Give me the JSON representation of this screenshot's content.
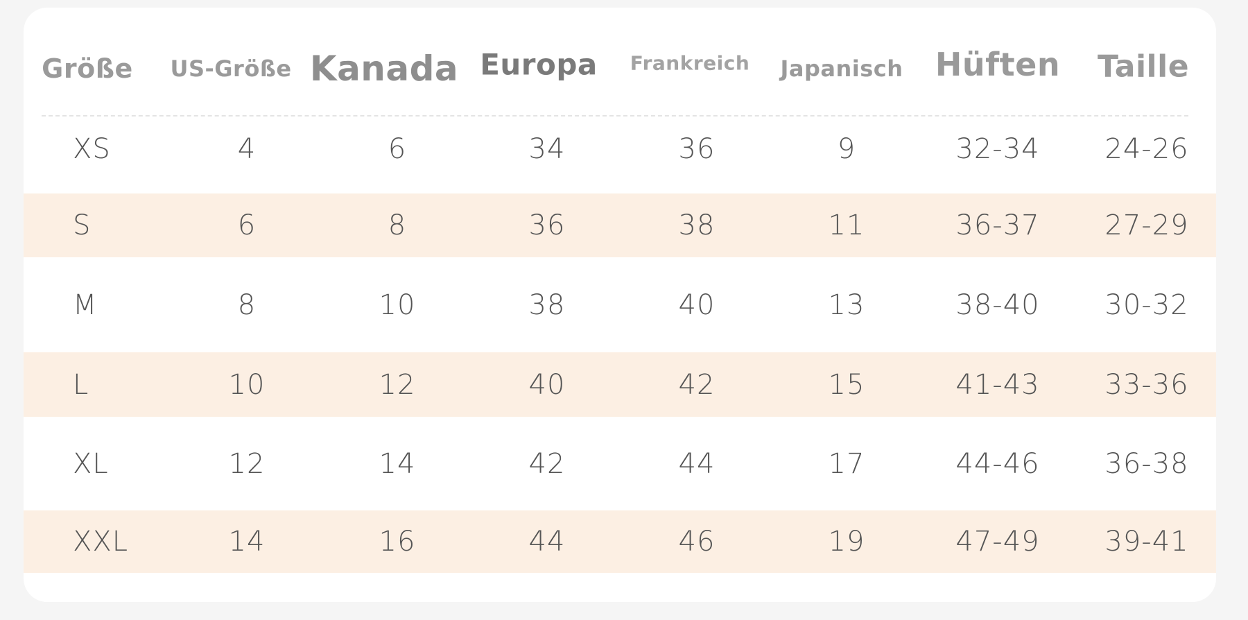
{
  "table": {
    "headers": [
      "Größe",
      "US-Größe",
      "Kanada",
      "Europa",
      "Frankreich",
      "Japanisch",
      "Hüften",
      "Taille"
    ],
    "rows": [
      [
        "XS",
        "4",
        "6",
        "34",
        "36",
        "9",
        "32-34",
        "24-26"
      ],
      [
        "S",
        "6",
        "8",
        "36",
        "38",
        "11",
        "36-37",
        "27-29"
      ],
      [
        "M",
        "8",
        "10",
        "38",
        "40",
        "13",
        "38-40",
        "30-32"
      ],
      [
        "L",
        "10",
        "12",
        "40",
        "42",
        "15",
        "41-43",
        "33-36"
      ],
      [
        "XL",
        "12",
        "14",
        "42",
        "44",
        "17",
        "44-46",
        "36-38"
      ],
      [
        "XXL",
        "14",
        "16",
        "44",
        "46",
        "19",
        "47-49",
        "39-41"
      ]
    ]
  },
  "colors": {
    "page_background": "#f5f5f5",
    "card_background": "#ffffff",
    "alternate_row": "#fcefe3",
    "header_text": "#9a9a9a",
    "cell_text": "#555555"
  }
}
